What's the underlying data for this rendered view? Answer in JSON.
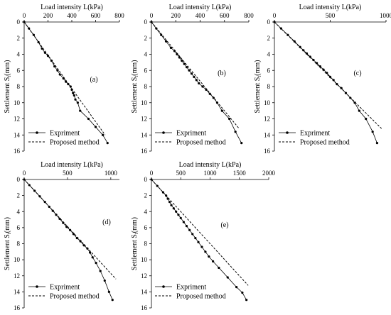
{
  "chart_data": [
    {
      "type": "line",
      "label": "(a)",
      "xlabel": "Load intensity L(kPa)",
      "ylabel": "Settlement S",
      "ylabel_sub": "t",
      "ylabel_unit": "(mm)",
      "x_ticks": [
        "0",
        "200",
        "400",
        "600",
        "800"
      ],
      "y_ticks": [
        "0",
        "2",
        "4",
        "6",
        "8",
        "10",
        "12",
        "14",
        "16"
      ],
      "xlim": [
        0,
        800
      ],
      "ylim": [
        0,
        16
      ],
      "y_inverted": true,
      "x_axis_position": "top",
      "grid": false,
      "legend_position": "bottom-left",
      "series": [
        {
          "name": "Expriment",
          "style": "solid-with-dots",
          "x": [
            0,
            40,
            80,
            120,
            150,
            175,
            200,
            230,
            255,
            280,
            300,
            330,
            350,
            370,
            390,
            400,
            410,
            420,
            430,
            450,
            470,
            540,
            600,
            660,
            700
          ],
          "y": [
            0,
            0.8,
            1.6,
            2.5,
            3.3,
            3.8,
            4.2,
            4.8,
            5.5,
            6.0,
            6.5,
            7.0,
            7.4,
            7.7,
            8.0,
            8.4,
            8.8,
            9.1,
            9.6,
            10.0,
            11.0,
            12.0,
            13.0,
            14.0,
            15.0
          ]
        },
        {
          "name": "Proposed method",
          "style": "dashed",
          "x": [
            0,
            680
          ],
          "y": [
            0,
            14.0
          ]
        }
      ]
    },
    {
      "type": "line",
      "label": "(b)",
      "xlabel": "Load intensity L(kPa)",
      "ylabel": "Settlement S",
      "ylabel_sub": "t",
      "ylabel_unit": "(mm)",
      "x_ticks": [
        "0",
        "200",
        "400",
        "600",
        "800"
      ],
      "y_ticks": [
        "0",
        "2",
        "4",
        "6",
        "8",
        "10",
        "12",
        "14",
        "16"
      ],
      "xlim": [
        0,
        800
      ],
      "ylim": [
        0,
        16
      ],
      "y_inverted": true,
      "x_axis_position": "top",
      "grid": false,
      "legend_position": "bottom-left",
      "series": [
        {
          "name": "Expriment",
          "style": "solid-with-dots",
          "x": [
            0,
            40,
            80,
            120,
            160,
            190,
            210,
            230,
            250,
            270,
            290,
            310,
            330,
            350,
            370,
            390,
            420,
            450,
            480,
            510,
            540,
            580,
            640,
            690,
            740
          ],
          "y": [
            0,
            0.8,
            1.6,
            2.4,
            3.2,
            3.6,
            4.0,
            4.4,
            4.8,
            5.2,
            5.6,
            6.0,
            6.4,
            6.8,
            7.2,
            7.6,
            8.0,
            8.4,
            8.9,
            9.4,
            10.0,
            11.0,
            12.0,
            13.6,
            15.0
          ]
        },
        {
          "name": "Proposed method",
          "style": "dashed",
          "x": [
            0,
            720
          ],
          "y": [
            0,
            13.2
          ]
        }
      ]
    },
    {
      "type": "line",
      "label": "(c)",
      "xlabel": "Load intensity L(kPa)",
      "ylabel": "Settlement S",
      "ylabel_sub": "t",
      "ylabel_unit": "(mm)",
      "x_ticks": [
        "0",
        "500",
        "1000"
      ],
      "y_ticks": [
        "0",
        "2",
        "4",
        "6",
        "8",
        "10",
        "12",
        "14",
        "16"
      ],
      "xlim": [
        0,
        1000
      ],
      "ylim": [
        0,
        16
      ],
      "y_inverted": true,
      "x_axis_position": "top",
      "grid": false,
      "legend_position": "bottom-left",
      "series": [
        {
          "name": "Expriment",
          "style": "solid-with-dots",
          "x": [
            0,
            60,
            120,
            180,
            230,
            260,
            290,
            320,
            350,
            380,
            410,
            440,
            470,
            500,
            530,
            560,
            600,
            640,
            680,
            720,
            760,
            820,
            880,
            920
          ],
          "y": [
            0,
            0.8,
            1.6,
            2.4,
            3.1,
            3.5,
            3.9,
            4.3,
            4.7,
            5.1,
            5.5,
            5.9,
            6.3,
            6.8,
            7.2,
            7.7,
            8.2,
            8.8,
            9.4,
            10.0,
            11.0,
            12.0,
            13.6,
            15.0
          ]
        },
        {
          "name": "Proposed method",
          "style": "dashed",
          "x": [
            0,
            960
          ],
          "y": [
            0,
            13.2
          ]
        }
      ]
    },
    {
      "type": "line",
      "label": "(d)",
      "xlabel": "Load intensity L(kPa)",
      "ylabel": "Settlement S",
      "ylabel_sub": "t",
      "ylabel_unit": "(mm)",
      "x_ticks": [
        "0",
        "500",
        "1000"
      ],
      "y_ticks": [
        "0",
        "2",
        "4",
        "6",
        "8",
        "10",
        "12",
        "14",
        "16"
      ],
      "xlim": [
        0,
        1100
      ],
      "ylim": [
        0,
        16
      ],
      "y_inverted": true,
      "x_axis_position": "top",
      "grid": false,
      "legend_position": "bottom-left",
      "series": [
        {
          "name": "Expriment",
          "style": "solid-with-dots",
          "x": [
            0,
            60,
            120,
            180,
            240,
            290,
            330,
            370,
            410,
            450,
            490,
            530,
            570,
            610,
            650,
            690,
            730,
            760,
            790,
            830,
            880,
            930,
            980,
            1020
          ],
          "y": [
            0,
            0.7,
            1.4,
            2.1,
            2.8,
            3.4,
            3.9,
            4.4,
            4.9,
            5.4,
            5.9,
            6.3,
            6.8,
            7.3,
            7.7,
            8.2,
            8.6,
            9.1,
            9.7,
            10.4,
            11.4,
            12.6,
            14.0,
            15.0
          ]
        },
        {
          "name": "Proposed method",
          "style": "dashed",
          "x": [
            0,
            1060
          ],
          "y": [
            0,
            12.4
          ]
        }
      ]
    },
    {
      "type": "line",
      "label": "(e)",
      "xlabel": "Load intensity L(kPa)",
      "ylabel": "Settlement S",
      "ylabel_sub": "t",
      "ylabel_unit": "(mm)",
      "x_ticks": [
        "0",
        "500",
        "1000",
        "1500",
        "2000"
      ],
      "y_ticks": [
        "0",
        "2",
        "4",
        "6",
        "8",
        "10",
        "12",
        "14",
        "16"
      ],
      "xlim": [
        0,
        2000
      ],
      "ylim": [
        0,
        16
      ],
      "y_inverted": true,
      "x_axis_position": "top",
      "grid": false,
      "legend_position": "bottom-left",
      "series": [
        {
          "name": "Expriment",
          "style": "solid-with-dots",
          "x": [
            0,
            100,
            200,
            250,
            280,
            310,
            340,
            380,
            420,
            460,
            500,
            550,
            600,
            650,
            700,
            750,
            800,
            860,
            920,
            980,
            1050,
            1150,
            1300,
            1450,
            1550,
            1620
          ],
          "y": [
            0,
            0.8,
            1.6,
            2.0,
            2.4,
            2.8,
            3.2,
            3.6,
            4.0,
            4.4,
            4.8,
            5.3,
            5.8,
            6.3,
            6.8,
            7.3,
            7.8,
            8.4,
            9.0,
            9.6,
            10.2,
            11.0,
            12.2,
            13.4,
            14.1,
            15.0
          ]
        },
        {
          "name": "Proposed method",
          "style": "dashed",
          "x": [
            0,
            1650
          ],
          "y": [
            0,
            13.2
          ]
        }
      ]
    }
  ]
}
